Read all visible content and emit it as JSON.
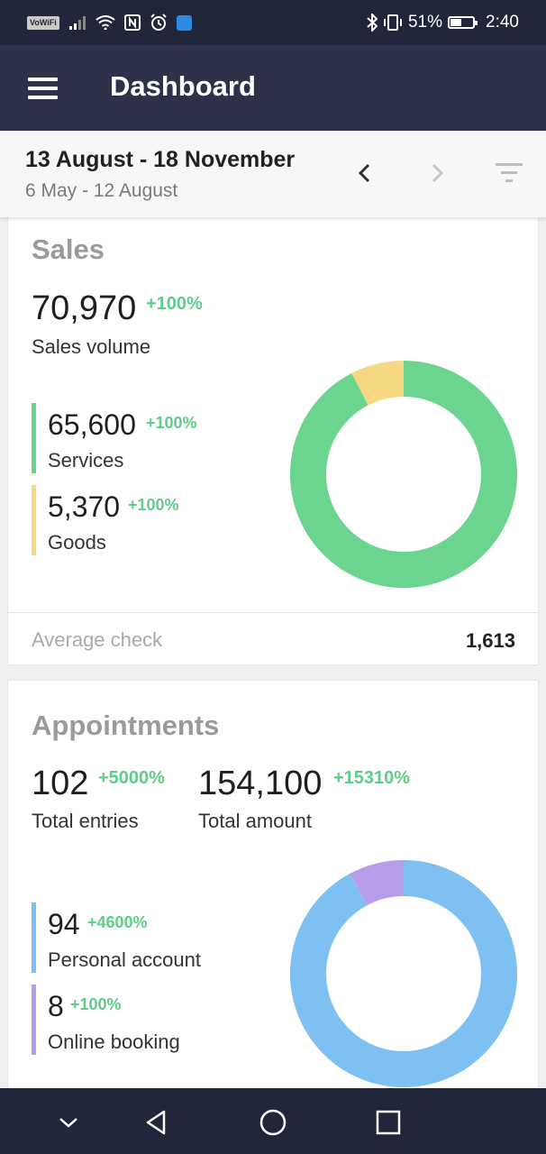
{
  "status_bar": {
    "vowifi": "VoWiFi",
    "battery_percent": "51%",
    "time": "2:40",
    "icons": [
      "signal-icon",
      "wifi-icon",
      "nfc-icon",
      "alarm-icon",
      "shield-app-icon",
      "bluetooth-icon",
      "vibrate-icon",
      "battery-icon"
    ]
  },
  "appbar": {
    "title": "Dashboard",
    "menu_icon": "hamburger-menu-icon"
  },
  "date_range": {
    "current": "13 August - 18 November",
    "previous": "6 May - 12 August",
    "prev_icon": "chevron-left-icon",
    "next_icon": "chevron-right-icon",
    "filter_icon": "filter-icon"
  },
  "colors": {
    "services": "#6bd58f",
    "goods": "#f6d782",
    "personal_account": "#7fc0f2",
    "online_booking": "#b79ceb",
    "positive": "#5fcd8a"
  },
  "sales": {
    "title": "Sales",
    "total": {
      "value": "70,970",
      "change": "+100%",
      "label": "Sales volume"
    },
    "items": [
      {
        "value": "65,600",
        "change": "+100%",
        "label": "Services",
        "amount": 65600
      },
      {
        "value": "5,370",
        "change": "+100%",
        "label": "Goods",
        "amount": 5370
      }
    ],
    "average_check": {
      "label": "Average check",
      "value": "1,613"
    }
  },
  "appointments": {
    "title": "Appointments",
    "entries": {
      "value": "102",
      "change": "+5000%",
      "label": "Total entries"
    },
    "amount": {
      "value": "154,100",
      "change": "+15310%",
      "label": "Total amount"
    },
    "items": [
      {
        "value": "94",
        "change": "+4600%",
        "label": "Personal account",
        "amount": 94
      },
      {
        "value": "8",
        "change": "+100%",
        "label": "Online booking",
        "amount": 8
      }
    ]
  },
  "nav": {
    "icons": [
      "collapse-icon",
      "back-icon",
      "home-icon",
      "recents-icon"
    ]
  }
}
